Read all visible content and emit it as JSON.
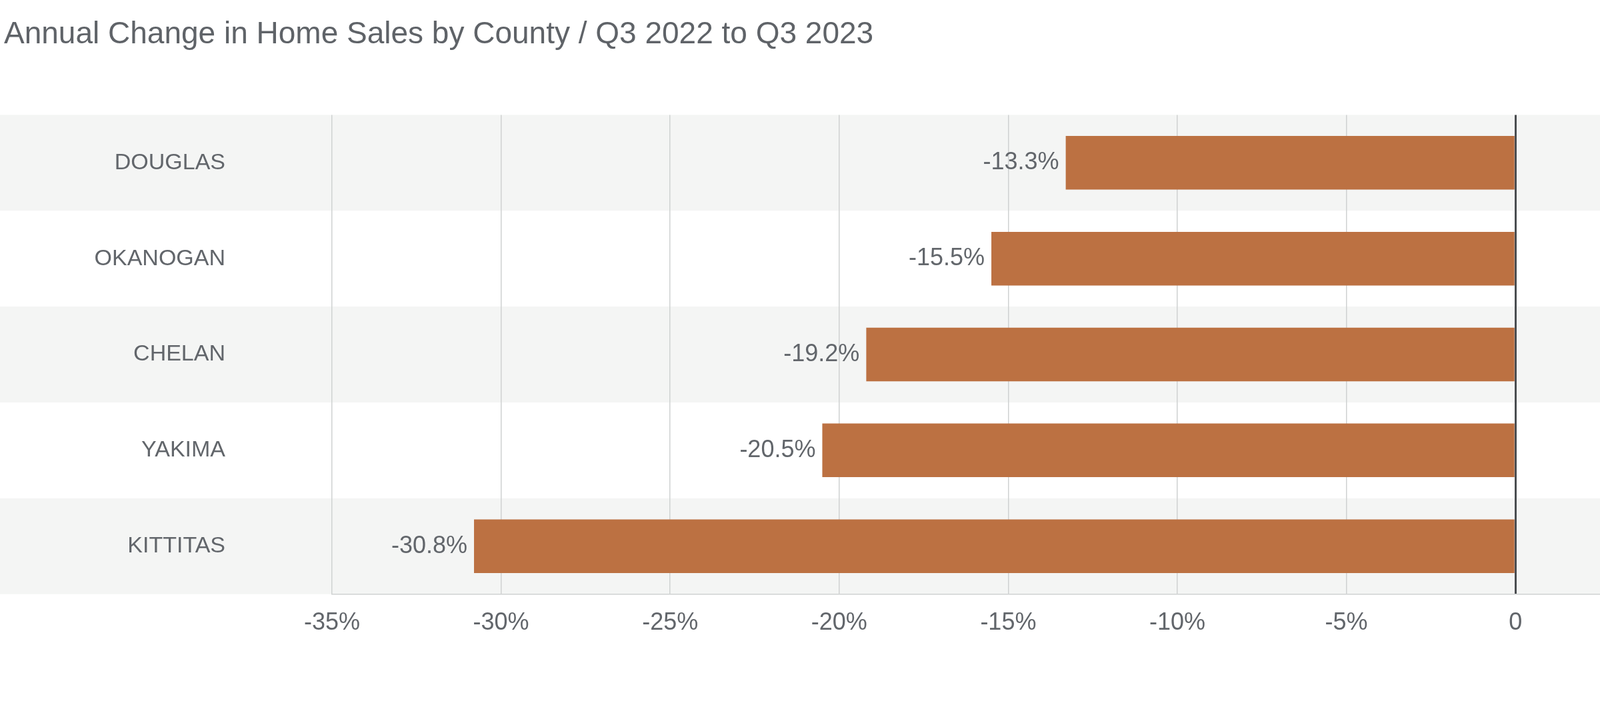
{
  "chart_data": {
    "type": "bar",
    "title": "Annual Change in Home Sales by County / Q3 2022 to Q3 2023",
    "categories": [
      "DOUGLAS",
      "OKANOGAN",
      "CHELAN",
      "YAKIMA",
      "KITTITAS"
    ],
    "values": [
      -13.3,
      -15.5,
      -19.2,
      -20.5,
      -30.8
    ],
    "value_labels": [
      "-13.3%",
      "-15.5%",
      "-19.2%",
      "-20.5%",
      "-30.8%"
    ],
    "color": "#bc7142",
    "orientation": "horizontal",
    "xlim": [
      -35,
      2.5
    ],
    "xticks": [
      {
        "value": -35,
        "label": "-35%"
      },
      {
        "value": -30,
        "label": "-30%"
      },
      {
        "value": -25,
        "label": "-25%"
      },
      {
        "value": -20,
        "label": "-20%"
      },
      {
        "value": -15,
        "label": "-15%"
      },
      {
        "value": -10,
        "label": "-10%"
      },
      {
        "value": -5,
        "label": "-5%"
      },
      0
    ],
    "grid": true,
    "data_labels": true
  }
}
